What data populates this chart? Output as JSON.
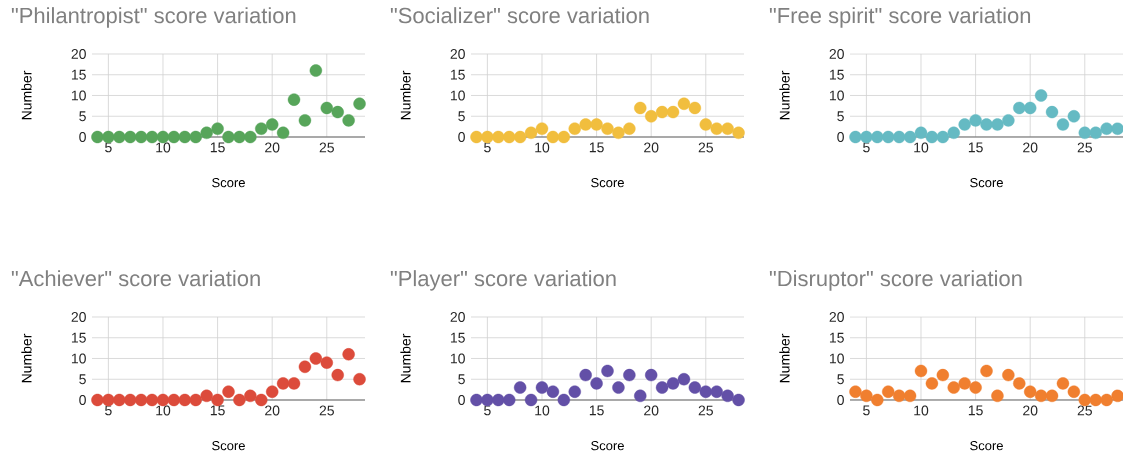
{
  "chart_data": [
    {
      "type": "scatter",
      "title": "\"Philantropist\" score variation",
      "xlabel": "Score",
      "ylabel": "Number",
      "color": "#57a55a",
      "marker": "circle",
      "grid": true,
      "xlim": [
        3.5,
        28.5
      ],
      "ylim": [
        0,
        20
      ],
      "xticks": [
        5,
        10,
        15,
        20,
        25
      ],
      "yticks": [
        0,
        5,
        10,
        15,
        20
      ],
      "x": [
        4,
        5,
        6,
        7,
        8,
        9,
        10,
        11,
        12,
        13,
        14,
        15,
        16,
        17,
        18,
        19,
        20,
        21,
        22,
        23,
        24,
        25,
        26,
        27,
        28
      ],
      "values": [
        0,
        0,
        0,
        0,
        0,
        0,
        0,
        0,
        0,
        0,
        1,
        2,
        0,
        0,
        0,
        2,
        3,
        1,
        9,
        4,
        16,
        7,
        6,
        4,
        8
      ]
    },
    {
      "type": "scatter",
      "title": "\"Socializer\" score variation",
      "xlabel": "Score",
      "ylabel": "Number",
      "color": "#f1be3e",
      "marker": "circle",
      "grid": true,
      "xlim": [
        3.5,
        28.5
      ],
      "ylim": [
        0,
        20
      ],
      "xticks": [
        5,
        10,
        15,
        20,
        25
      ],
      "yticks": [
        0,
        5,
        10,
        15,
        20
      ],
      "x": [
        4,
        5,
        6,
        7,
        8,
        9,
        10,
        11,
        12,
        13,
        14,
        15,
        16,
        17,
        18,
        19,
        20,
        21,
        22,
        23,
        24,
        25,
        26,
        27,
        28
      ],
      "values": [
        0,
        0,
        0,
        0,
        0,
        1,
        2,
        0,
        0,
        2,
        3,
        3,
        2,
        1,
        2,
        7,
        5,
        6,
        6,
        8,
        7,
        3,
        2,
        2,
        1
      ]
    },
    {
      "type": "scatter",
      "title": "\"Free spirit\" score variation",
      "xlabel": "Score",
      "ylabel": "Number",
      "color": "#65bac3",
      "marker": "circle",
      "grid": true,
      "xlim": [
        3.5,
        28.5
      ],
      "ylim": [
        0,
        20
      ],
      "xticks": [
        5,
        10,
        15,
        20,
        25
      ],
      "yticks": [
        0,
        5,
        10,
        15,
        20
      ],
      "x": [
        4,
        5,
        6,
        7,
        8,
        9,
        10,
        11,
        12,
        13,
        14,
        15,
        16,
        17,
        18,
        19,
        20,
        21,
        22,
        23,
        24,
        25,
        26,
        27,
        28
      ],
      "values": [
        0,
        0,
        0,
        0,
        0,
        0,
        1,
        0,
        0,
        1,
        3,
        4,
        3,
        3,
        4,
        7,
        7,
        10,
        6,
        3,
        5,
        1,
        1,
        2,
        2
      ]
    },
    {
      "type": "scatter",
      "title": "\"Achiever\" score variation",
      "xlabel": "Score",
      "ylabel": "Number",
      "color": "#dc4b3b",
      "marker": "circle",
      "grid": true,
      "xlim": [
        3.5,
        28.5
      ],
      "ylim": [
        0,
        20
      ],
      "xticks": [
        5,
        10,
        15,
        20,
        25
      ],
      "yticks": [
        0,
        5,
        10,
        15,
        20
      ],
      "x": [
        4,
        5,
        6,
        7,
        8,
        9,
        10,
        11,
        12,
        13,
        14,
        15,
        16,
        17,
        18,
        19,
        20,
        21,
        22,
        23,
        24,
        25,
        26,
        27,
        28
      ],
      "values": [
        0,
        0,
        0,
        0,
        0,
        0,
        0,
        0,
        0,
        0,
        1,
        0,
        2,
        0,
        1,
        0,
        2,
        4,
        4,
        8,
        10,
        9,
        6,
        11,
        5
      ]
    },
    {
      "type": "scatter",
      "title": "\"Player\" score variation",
      "xlabel": "Score",
      "ylabel": "Number",
      "color": "#6350a7",
      "marker": "circle",
      "grid": true,
      "xlim": [
        3.5,
        28.5
      ],
      "ylim": [
        0,
        20
      ],
      "xticks": [
        5,
        10,
        15,
        20,
        25
      ],
      "yticks": [
        0,
        5,
        10,
        15,
        20
      ],
      "x": [
        4,
        5,
        6,
        7,
        8,
        9,
        10,
        11,
        12,
        13,
        14,
        15,
        16,
        17,
        18,
        19,
        20,
        21,
        22,
        23,
        24,
        25,
        26,
        27,
        28
      ],
      "values": [
        0,
        0,
        0,
        0,
        3,
        0,
        3,
        2,
        0,
        2,
        6,
        4,
        7,
        3,
        6,
        1,
        6,
        3,
        4,
        5,
        3,
        2,
        2,
        1,
        0
      ]
    },
    {
      "type": "scatter",
      "title": "\"Disruptor\" score variation",
      "xlabel": "Score",
      "ylabel": "Number",
      "color": "#f07f2f",
      "marker": "circle",
      "grid": true,
      "xlim": [
        3.5,
        28.5
      ],
      "ylim": [
        0,
        20
      ],
      "xticks": [
        5,
        10,
        15,
        20,
        25
      ],
      "yticks": [
        0,
        5,
        10,
        15,
        20
      ],
      "x": [
        4,
        5,
        6,
        7,
        8,
        9,
        10,
        11,
        12,
        13,
        14,
        15,
        16,
        17,
        18,
        19,
        20,
        21,
        22,
        23,
        24,
        25,
        26,
        27,
        28
      ],
      "values": [
        2,
        1,
        0,
        2,
        1,
        1,
        7,
        4,
        6,
        3,
        4,
        3,
        7,
        1,
        6,
        4,
        2,
        1,
        1,
        4,
        2,
        0,
        0,
        0,
        1
      ]
    }
  ]
}
